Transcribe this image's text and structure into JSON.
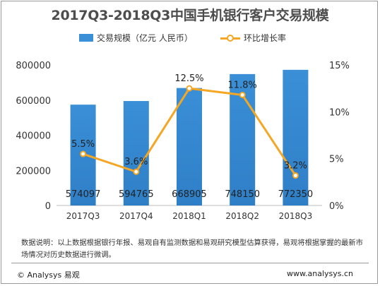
{
  "title": "2017Q3-2018Q3中国手机银行客户交易规模",
  "legend": {
    "bar_label": "交易规模（亿元 人民币）",
    "line_label": "环比增长率"
  },
  "colors": {
    "bar": "#3a8fd6",
    "line": "#f5a623",
    "axis_text": "#333333"
  },
  "chart_data": {
    "type": "bar",
    "categories": [
      "2017Q3",
      "2017Q4",
      "2018Q1",
      "2018Q2",
      "2018Q3"
    ],
    "series": [
      {
        "name": "交易规模（亿元 人民币）",
        "type": "bar",
        "axis": "left",
        "values": [
          574097,
          594765,
          668905,
          748150,
          772350
        ],
        "labels": [
          "574097",
          "594765",
          "668905",
          "748150",
          "772350"
        ]
      },
      {
        "name": "环比增长率",
        "type": "line",
        "axis": "right",
        "values": [
          5.5,
          3.6,
          12.5,
          11.8,
          3.2
        ],
        "labels": [
          "5.5%",
          "3.6%",
          "12.5%",
          "11.8%",
          "3.2%"
        ]
      }
    ],
    "y_left": {
      "min": 0,
      "max": 800000,
      "ticks": [
        0,
        200000,
        400000,
        600000,
        800000
      ],
      "tick_labels": [
        "0",
        "200000",
        "400000",
        "600000",
        "800000"
      ]
    },
    "y_right": {
      "min": 0,
      "max": 15,
      "ticks": [
        0,
        5,
        10,
        15
      ],
      "tick_labels": [
        "0%",
        "5%",
        "10%",
        "15%"
      ]
    },
    "grid": false,
    "legend_position": "top"
  },
  "note": "数据说明：以上数据根据银行年报、易观自有监测数据和易观研究模型估算获得，易观将根据掌握的最新市场情况对历史数据进行微调。",
  "footer": {
    "brand": "© Analysys 易观",
    "url": "www.analysys.cn"
  }
}
